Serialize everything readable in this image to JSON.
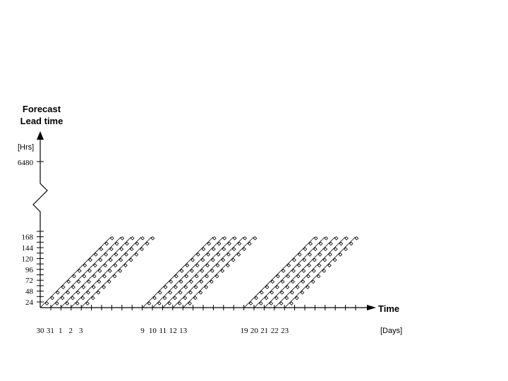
{
  "y_axis": {
    "title_line1": "Forecast",
    "title_line2": "Lead time",
    "unit": "[Hrs]",
    "top_label": "6480",
    "tick_labels": [
      "24",
      "48",
      "72",
      "96",
      "120",
      "144",
      "168"
    ]
  },
  "x_axis": {
    "title": "Time",
    "unit": "[Days]",
    "groups": [
      [
        "30",
        "31",
        "1",
        "2",
        "3"
      ],
      [
        "9",
        "10",
        "11",
        "12",
        "13"
      ],
      [
        "19",
        "20",
        "21",
        "22",
        "23"
      ]
    ]
  }
}
